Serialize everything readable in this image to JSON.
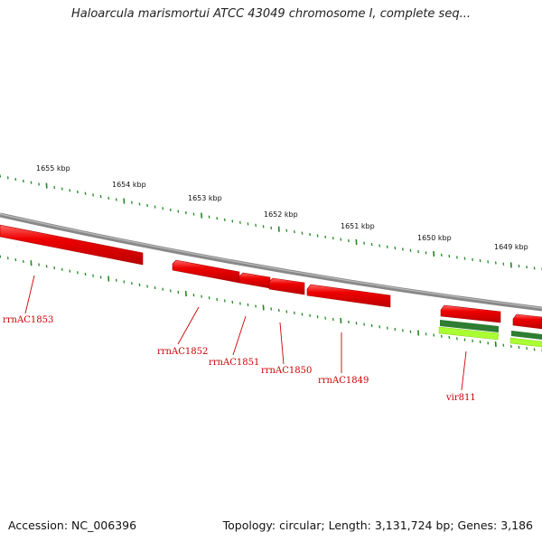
{
  "title": "Haloarcula marismortui ATCC 43049 chromosome I, complete seq...",
  "footer": {
    "accession": "Accession: NC_006396",
    "summary": "Topology: circular; Length: 3,131,724 bp; Genes: 3,186"
  },
  "scale": {
    "ticks": [
      "1655 kbp",
      "1654 kbp",
      "1653 kbp",
      "1652 kbp",
      "1651 kbp",
      "1650 kbp",
      "1649 kbp"
    ]
  },
  "genes": [
    {
      "id": "rrnAC1853",
      "label": "rrnAC1853",
      "color": "#ee0000"
    },
    {
      "id": "rrnAC1852",
      "label": "rrnAC1852",
      "color": "#ee0000"
    },
    {
      "id": "rrnAC1851",
      "label": "rrnAC1851",
      "color": "#ee0000"
    },
    {
      "id": "rrnAC1850",
      "label": "rrnAC1850",
      "color": "#ee0000"
    },
    {
      "id": "rrnAC1849",
      "label": "rrnAC1849",
      "color": "#ee0000"
    },
    {
      "id": "vir811",
      "label": "vir811",
      "color": "#ee0000"
    }
  ],
  "colors": {
    "backbone": "#888888",
    "gene": "#ee0000",
    "tick": "#228822",
    "feature_dark_green": "#2e7d32",
    "feature_light_green": "#aaff33",
    "label": "#cc0000"
  }
}
